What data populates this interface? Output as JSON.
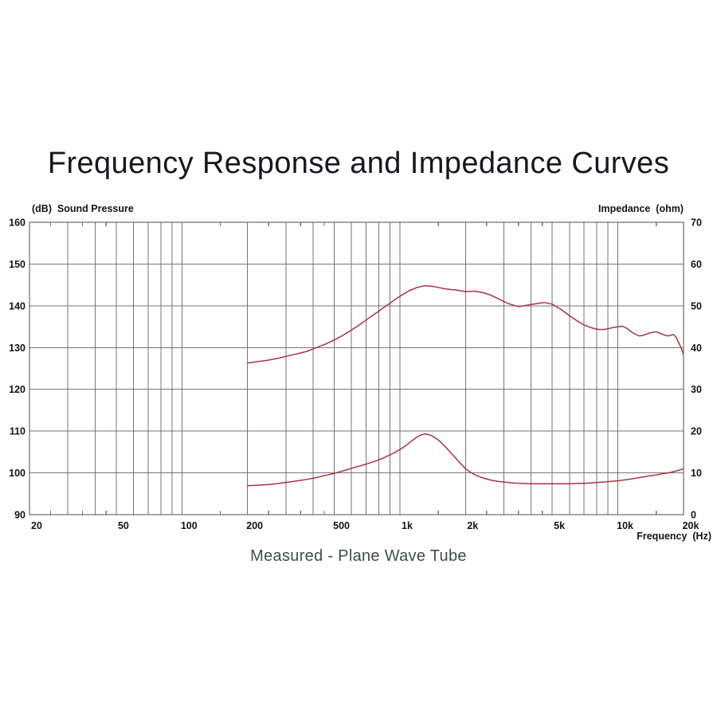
{
  "title": "Frequency Response and Impedance Curves",
  "caption": "Measured - Plane Wave Tube",
  "chart_data": {
    "type": "line",
    "title": "Frequency Response and Impedance Curves",
    "subtitle": "Measured - Plane Wave Tube",
    "x_axis": {
      "label": "Frequency  (Hz)",
      "scale": "log",
      "range": [
        20,
        20000
      ],
      "major_ticks": [
        {
          "value": 20,
          "label": "20"
        },
        {
          "value": 50,
          "label": "50"
        },
        {
          "value": 100,
          "label": "100"
        },
        {
          "value": 200,
          "label": "200"
        },
        {
          "value": 500,
          "label": "500"
        },
        {
          "value": 1000,
          "label": "1k"
        },
        {
          "value": 2000,
          "label": "2k"
        },
        {
          "value": 5000,
          "label": "5k"
        },
        {
          "value": 10000,
          "label": "10k"
        },
        {
          "value": 20000,
          "label": "20k"
        }
      ],
      "gridline_freqs": [
        30,
        40,
        50,
        60,
        70,
        80,
        90,
        100,
        200,
        300,
        400,
        500,
        600,
        700,
        800,
        900,
        1000,
        2000,
        3000,
        4000,
        5000,
        6000,
        7000,
        8000,
        9000,
        10000
      ],
      "minor_tick_freqs": [
        25,
        35,
        45,
        150,
        250,
        350,
        450,
        1500,
        2500,
        3500,
        4500,
        15000
      ]
    },
    "y_left_axis": {
      "label": "(dB)  Sound Pressure",
      "range": [
        90,
        160
      ],
      "tick_step": 10,
      "tick_labels": [
        "160",
        "150",
        "140",
        "130",
        "120",
        "110",
        "100",
        "90"
      ]
    },
    "y_right_axis": {
      "label": "Impedance  (ohm)",
      "range": [
        0,
        70
      ],
      "tick_step": 10,
      "tick_labels": [
        "70",
        "60",
        "50",
        "40",
        "30",
        "20",
        "10",
        "0"
      ]
    },
    "grid": true,
    "legend": "none",
    "series": [
      {
        "name": "Sound Pressure (dB)",
        "axis": "left",
        "points": [
          [
            200,
            126.3
          ],
          [
            220,
            126.6
          ],
          [
            250,
            127.0
          ],
          [
            280,
            127.5
          ],
          [
            300,
            127.9
          ],
          [
            320,
            128.2
          ],
          [
            350,
            128.7
          ],
          [
            380,
            129.2
          ],
          [
            400,
            129.7
          ],
          [
            450,
            130.7
          ],
          [
            500,
            131.8
          ],
          [
            550,
            133.0
          ],
          [
            600,
            134.2
          ],
          [
            650,
            135.4
          ],
          [
            700,
            136.6
          ],
          [
            750,
            137.7
          ],
          [
            800,
            138.7
          ],
          [
            850,
            139.7
          ],
          [
            900,
            140.6
          ],
          [
            950,
            141.5
          ],
          [
            1000,
            142.3
          ],
          [
            1100,
            143.6
          ],
          [
            1200,
            144.4
          ],
          [
            1300,
            144.8
          ],
          [
            1400,
            144.7
          ],
          [
            1500,
            144.4
          ],
          [
            1600,
            144.1
          ],
          [
            1700,
            143.9
          ],
          [
            1800,
            143.8
          ],
          [
            1900,
            143.6
          ],
          [
            2000,
            143.4
          ],
          [
            2200,
            143.5
          ],
          [
            2400,
            143.2
          ],
          [
            2600,
            142.6
          ],
          [
            2800,
            141.8
          ],
          [
            3000,
            141.0
          ],
          [
            3200,
            140.4
          ],
          [
            3500,
            139.8
          ],
          [
            3800,
            140.1
          ],
          [
            4200,
            140.5
          ],
          [
            4600,
            140.8
          ],
          [
            5000,
            140.4
          ],
          [
            5500,
            139.1
          ],
          [
            6000,
            137.6
          ],
          [
            6500,
            136.4
          ],
          [
            7000,
            135.4
          ],
          [
            7500,
            134.8
          ],
          [
            8000,
            134.4
          ],
          [
            8500,
            134.3
          ],
          [
            9000,
            134.5
          ],
          [
            9500,
            134.8
          ],
          [
            10000,
            135.0
          ],
          [
            10500,
            135.1
          ],
          [
            11000,
            134.6
          ],
          [
            11500,
            133.8
          ],
          [
            12000,
            133.2
          ],
          [
            12500,
            132.8
          ],
          [
            13000,
            132.9
          ],
          [
            13500,
            133.2
          ],
          [
            14000,
            133.5
          ],
          [
            15000,
            133.8
          ],
          [
            16000,
            133.2
          ],
          [
            16500,
            132.9
          ],
          [
            17000,
            132.8
          ],
          [
            17500,
            133.0
          ],
          [
            18000,
            133.1
          ],
          [
            18500,
            132.5
          ],
          [
            19000,
            131.2
          ],
          [
            19500,
            129.9
          ],
          [
            20000,
            128.3
          ]
        ]
      },
      {
        "name": "Impedance (ohm)",
        "axis": "right",
        "points": [
          [
            200,
            6.9
          ],
          [
            250,
            7.2
          ],
          [
            300,
            7.7
          ],
          [
            350,
            8.2
          ],
          [
            400,
            8.7
          ],
          [
            450,
            9.3
          ],
          [
            500,
            9.9
          ],
          [
            550,
            10.5
          ],
          [
            600,
            11.1
          ],
          [
            650,
            11.6
          ],
          [
            700,
            12.1
          ],
          [
            750,
            12.6
          ],
          [
            800,
            13.1
          ],
          [
            850,
            13.7
          ],
          [
            900,
            14.3
          ],
          [
            950,
            14.9
          ],
          [
            1000,
            15.6
          ],
          [
            1050,
            16.3
          ],
          [
            1100,
            17.1
          ],
          [
            1150,
            17.9
          ],
          [
            1200,
            18.6
          ],
          [
            1250,
            19.1
          ],
          [
            1300,
            19.3
          ],
          [
            1350,
            19.2
          ],
          [
            1400,
            18.9
          ],
          [
            1500,
            17.9
          ],
          [
            1600,
            16.5
          ],
          [
            1700,
            15.0
          ],
          [
            1800,
            13.6
          ],
          [
            1900,
            12.2
          ],
          [
            2000,
            11.0
          ],
          [
            2100,
            10.2
          ],
          [
            2200,
            9.6
          ],
          [
            2400,
            8.8
          ],
          [
            2600,
            8.3
          ],
          [
            2800,
            8.0
          ],
          [
            3000,
            7.8
          ],
          [
            3300,
            7.6
          ],
          [
            3600,
            7.5
          ],
          [
            4000,
            7.4
          ],
          [
            4500,
            7.4
          ],
          [
            5000,
            7.4
          ],
          [
            5500,
            7.4
          ],
          [
            6000,
            7.4
          ],
          [
            6500,
            7.5
          ],
          [
            7000,
            7.5
          ],
          [
            7500,
            7.6
          ],
          [
            8000,
            7.7
          ],
          [
            9000,
            7.9
          ],
          [
            10000,
            8.1
          ],
          [
            11000,
            8.4
          ],
          [
            12000,
            8.7
          ],
          [
            13000,
            9.0
          ],
          [
            14000,
            9.3
          ],
          [
            15000,
            9.5
          ],
          [
            16000,
            9.8
          ],
          [
            17000,
            10.0
          ],
          [
            18000,
            10.3
          ],
          [
            19000,
            10.6
          ],
          [
            20000,
            11.0
          ]
        ]
      }
    ],
    "style": {
      "curve_color": "#a93541",
      "grid_color": "#757575",
      "frame_color": "#4f4f4f",
      "text_color": "#141414"
    }
  }
}
